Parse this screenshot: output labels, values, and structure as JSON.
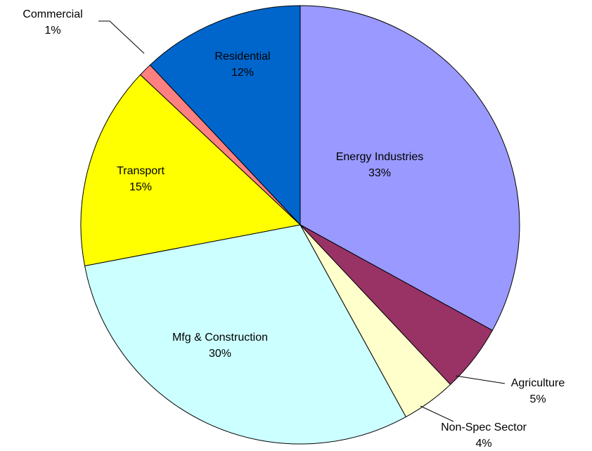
{
  "chart_data": {
    "type": "pie",
    "categories": [
      "Energy Industries",
      "Agriculture",
      "Non-Spec Sector",
      "Mfg & Construction",
      "Transport",
      "Commercial",
      "Residential"
    ],
    "values": [
      33,
      5,
      4,
      30,
      15,
      1,
      12
    ],
    "value_labels": [
      "33%",
      "5%",
      "4%",
      "30%",
      "15%",
      "1%",
      "12%"
    ],
    "colors": [
      "#9999ff",
      "#993366",
      "#ffffcc",
      "#ccffff",
      "#ffff00",
      "#ff8080",
      "#0066cc"
    ]
  }
}
